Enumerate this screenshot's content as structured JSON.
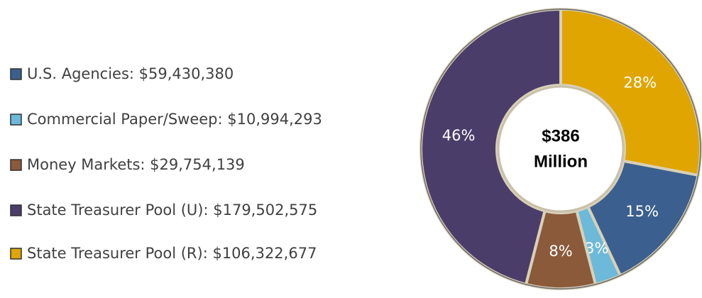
{
  "chart_data": {
    "type": "pie",
    "categories": [
      "U.S. Agencies:  $59,430,380",
      "Commercial Paper/Sweep:  $10,994,293",
      "Money Markets:  $29,754,139",
      "State Treasurer Pool (U):  $179,502,575",
      "State Treasurer Pool (R):  $106,322,677"
    ],
    "values": [
      15,
      3,
      8,
      46,
      28
    ],
    "value_labels": [
      "15%",
      "3%",
      "8%",
      "46%",
      "28%"
    ],
    "colors": [
      "#3b5f8e",
      "#6cb9d9",
      "#8a5a3b",
      "#4b3d6a",
      "#e0a500"
    ],
    "center_label": [
      "$386",
      "Million"
    ]
  }
}
